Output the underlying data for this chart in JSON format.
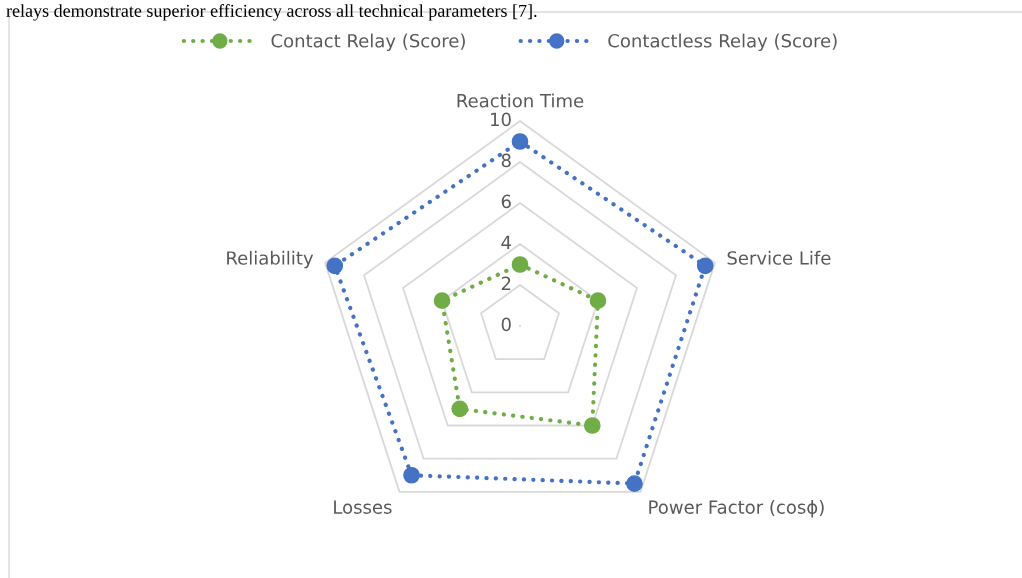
{
  "chart_data": {
    "type": "radar",
    "annotations": [
      "relays demonstrate superior efficiency across all technical parameters [7]."
    ],
    "categories": [
      "Reaction Time",
      "Service Life",
      "Power Factor (cosϕ)",
      "Losses",
      "Reliability"
    ],
    "series": [
      {
        "name": "Contact Relay (Score)",
        "color": "#70ad47",
        "values": [
          3,
          4,
          6,
          5,
          4
        ]
      },
      {
        "name": "Contactless Relay (Score)",
        "color": "#4472c4",
        "values": [
          9,
          9.5,
          9.5,
          9,
          9.5
        ]
      }
    ],
    "ylim": [
      0,
      10
    ],
    "yticks": [
      0,
      2,
      4,
      6,
      8,
      10
    ],
    "grid": true,
    "legend": "top",
    "marker": "circle",
    "line_style": "dotted"
  }
}
